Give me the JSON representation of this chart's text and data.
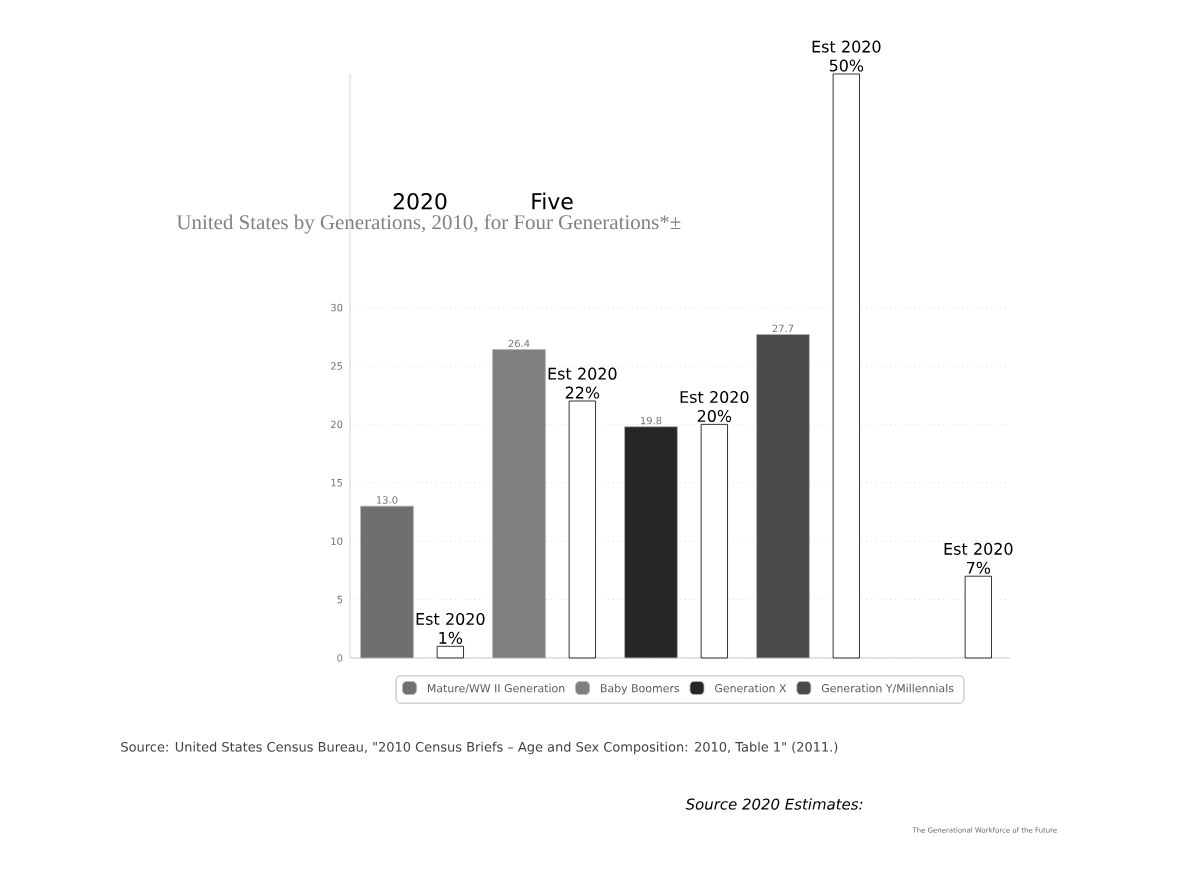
{
  "chart_data": {
    "type": "bar",
    "title": "United States by Generations, 2010, for Four Generations*±",
    "categories": [
      null,
      null,
      null,
      null,
      null
    ],
    "series": [
      {
        "name": "Mature/WW II Generation",
        "color": "#6f6f6f",
        "values": [
          13.0,
          null,
          null,
          null,
          null
        ],
        "value_labels": [
          "13.0",
          null,
          null,
          null,
          null
        ]
      },
      {
        "name": "Baby Boomers",
        "color": "#7f7f7f",
        "values": [
          null,
          26.4,
          null,
          null,
          null
        ],
        "value_labels": [
          null,
          "26.4",
          null,
          null,
          null
        ]
      },
      {
        "name": "Generation X",
        "color": "#262626",
        "values": [
          null,
          null,
          19.8,
          null,
          null
        ],
        "value_labels": [
          null,
          null,
          "19.8",
          null,
          null
        ]
      },
      {
        "name": "Generation Y/Millennials",
        "color": "#4a4a4a",
        "values": [
          null,
          null,
          null,
          27.7,
          null
        ],
        "value_labels": [
          null,
          null,
          null,
          "27.7",
          null
        ]
      },
      {
        "color": "#ffffff",
        "values": [
          1,
          22,
          20,
          50,
          7
        ],
        "value_labels": [
          "Est 2020 1%",
          "Est 2020 22%",
          "Est 2020 20%",
          "Est 2020 50%",
          "Est 2020 7%"
        ]
      }
    ],
    "ylim": [
      0,
      50
    ],
    "yticks": [
      0,
      5,
      10,
      15,
      20,
      25,
      30
    ],
    "grid": "y",
    "legend": "bottom",
    "annotations": [
      "2020",
      "Five",
      "Source: United States Census Bureau, \"2010 Census Briefs – Age and Sex Composition: 2010, Table 1\" (2011.)",
      "Source 2020 Estimates:",
      "The Generational Workforce of the Future"
    ]
  }
}
